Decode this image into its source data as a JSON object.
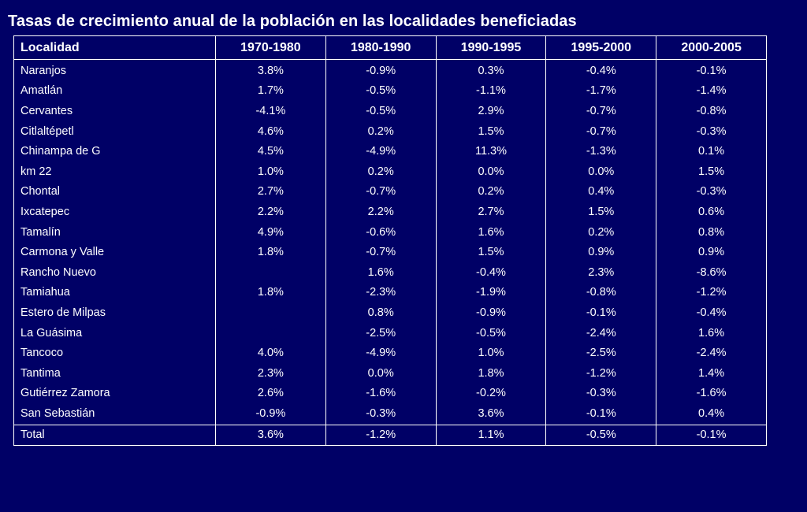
{
  "chart_data": {
    "type": "table",
    "title": "Tasas de crecimiento anual de la población en las localidades beneficiadas",
    "columns": [
      "Localidad",
      "1970-1980",
      "1980-1990",
      "1990-1995",
      "1995-2000",
      "2000-2005"
    ],
    "rows": [
      [
        "Naranjos",
        "3.8%",
        "-0.9%",
        "0.3%",
        "-0.4%",
        "-0.1%"
      ],
      [
        "Amatlán",
        "1.7%",
        "-0.5%",
        "-1.1%",
        "-1.7%",
        "-1.4%"
      ],
      [
        "Cervantes",
        "-4.1%",
        "-0.5%",
        "2.9%",
        "-0.7%",
        "-0.8%"
      ],
      [
        "Citlaltépetl",
        "4.6%",
        "0.2%",
        "1.5%",
        "-0.7%",
        "-0.3%"
      ],
      [
        "Chinampa de G",
        "4.5%",
        "-4.9%",
        "11.3%",
        "-1.3%",
        "0.1%"
      ],
      [
        "km 22",
        "1.0%",
        "0.2%",
        "0.0%",
        "0.0%",
        "1.5%"
      ],
      [
        "Chontal",
        "2.7%",
        "-0.7%",
        "0.2%",
        "0.4%",
        "-0.3%"
      ],
      [
        "Ixcatepec",
        "2.2%",
        "2.2%",
        "2.7%",
        "1.5%",
        "0.6%"
      ],
      [
        "Tamalín",
        "4.9%",
        "-0.6%",
        "1.6%",
        "0.2%",
        "0.8%"
      ],
      [
        "Carmona y Valle",
        "1.8%",
        "-0.7%",
        "1.5%",
        "0.9%",
        "0.9%"
      ],
      [
        "Rancho Nuevo",
        "",
        "1.6%",
        "-0.4%",
        "2.3%",
        "-8.6%"
      ],
      [
        "Tamiahua",
        "1.8%",
        "-2.3%",
        "-1.9%",
        "-0.8%",
        "-1.2%"
      ],
      [
        "Estero de Milpas",
        "",
        "0.8%",
        "-0.9%",
        "-0.1%",
        "-0.4%"
      ],
      [
        "La Guásima",
        "",
        "-2.5%",
        "-0.5%",
        "-2.4%",
        "1.6%"
      ],
      [
        "Tancoco",
        "4.0%",
        "-4.9%",
        "1.0%",
        "-2.5%",
        "-2.4%"
      ],
      [
        "Tantima",
        "2.3%",
        "0.0%",
        "1.8%",
        "-1.2%",
        "1.4%"
      ],
      [
        "Gutiérrez Zamora",
        "2.6%",
        "-1.6%",
        "-0.2%",
        "-0.3%",
        "-1.6%"
      ],
      [
        "San Sebastián",
        "-0.9%",
        "-0.3%",
        "3.6%",
        "-0.1%",
        "0.4%"
      ]
    ],
    "total": [
      "Total",
      "3.6%",
      "-1.2%",
      "1.1%",
      "-0.5%",
      "-0.1%"
    ]
  },
  "colors": {
    "background": "#000066",
    "text": "#ffffff",
    "border": "#ffffff"
  }
}
